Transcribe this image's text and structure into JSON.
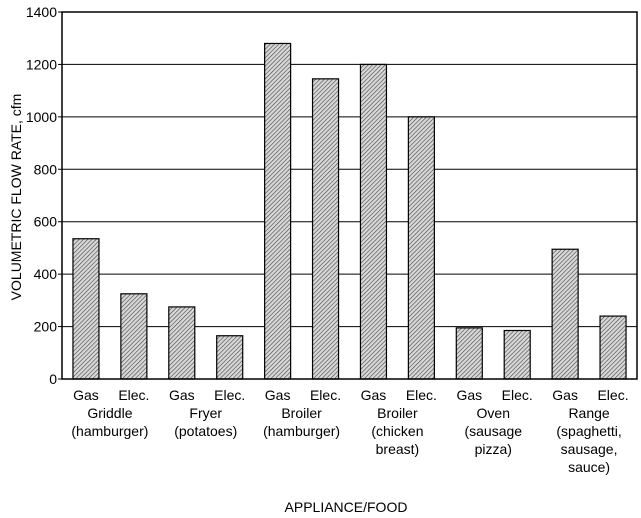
{
  "chart_data": {
    "type": "bar",
    "title": "",
    "xlabel": "APPLIANCE/FOOD",
    "ylabel": "VOLUMETRIC FLOW RATE, cfm",
    "ylim": [
      0,
      1400
    ],
    "yticks": [
      0,
      200,
      400,
      600,
      800,
      1000,
      1200,
      1400
    ],
    "grid": true,
    "legend": "none",
    "bar_fill": "hatched gray",
    "categories": [
      {
        "label": "Gas",
        "value": 535
      },
      {
        "label": "Elec.",
        "value": 325
      },
      {
        "label": "Gas",
        "value": 275
      },
      {
        "label": "Elec.",
        "value": 165
      },
      {
        "label": "Gas",
        "value": 1280
      },
      {
        "label": "Elec.",
        "value": 1145
      },
      {
        "label": "Gas",
        "value": 1200
      },
      {
        "label": "Elec.",
        "value": 1000
      },
      {
        "label": "Gas",
        "value": 195
      },
      {
        "label": "Elec.",
        "value": 185
      },
      {
        "label": "Gas",
        "value": 495
      },
      {
        "label": "Elec.",
        "value": 240
      }
    ],
    "groups": [
      {
        "lines": [
          "Griddle",
          "(hamburger)"
        ]
      },
      {
        "lines": [
          "Fryer",
          "(potatoes)"
        ]
      },
      {
        "lines": [
          "Broiler",
          "(hamburger)"
        ]
      },
      {
        "lines": [
          "Broiler",
          "(chicken",
          "breast)"
        ]
      },
      {
        "lines": [
          "Oven",
          "(sausage",
          "pizza)"
        ]
      },
      {
        "lines": [
          "Range",
          "(spaghetti,",
          "sausage,",
          "sauce)"
        ]
      }
    ]
  }
}
